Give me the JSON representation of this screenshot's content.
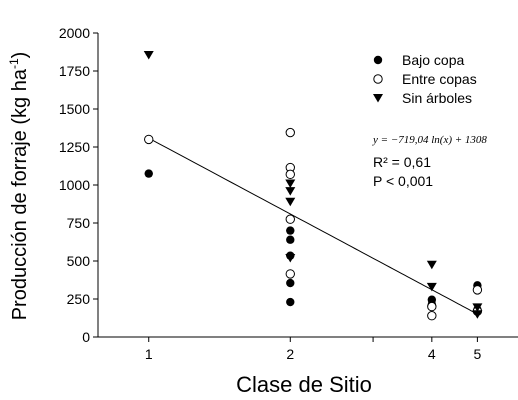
{
  "chart_data": {
    "type": "scatter",
    "xlabel": "Clase de Sitio",
    "ylabel": "Producción de forraje (kg ha",
    "ylabel_sup": "-1",
    "ylabel_close": ")",
    "x_scale": "log",
    "xlim": [
      0.78,
      6.1
    ],
    "ylim": [
      0,
      2000
    ],
    "x_ticks": [
      1,
      2,
      4,
      5
    ],
    "x_minor_ticks": [
      3
    ],
    "y_ticks": [
      0,
      250,
      500,
      750,
      1000,
      1250,
      1500,
      1750,
      2000
    ],
    "grid": false,
    "legend_position": "top-right",
    "series": [
      {
        "name": "Bajo copa",
        "marker": "filled-circle",
        "color": "#000000",
        "points": [
          [
            1,
            1075
          ],
          [
            2,
            700
          ],
          [
            2,
            640
          ],
          [
            2,
            535
          ],
          [
            2,
            355
          ],
          [
            2,
            230
          ],
          [
            4,
            245
          ],
          [
            4,
            215
          ],
          [
            5,
            340
          ],
          [
            5,
            180
          ]
        ]
      },
      {
        "name": "Entre copas",
        "marker": "open-circle",
        "color": "#000000",
        "points": [
          [
            1,
            1300
          ],
          [
            2,
            1345
          ],
          [
            2,
            1115
          ],
          [
            2,
            1070
          ],
          [
            2,
            775
          ],
          [
            2,
            415
          ],
          [
            4,
            200
          ],
          [
            4,
            140
          ],
          [
            5,
            310
          ],
          [
            5,
            170
          ]
        ]
      },
      {
        "name": "Sin árboles",
        "marker": "filled-triangle-down",
        "color": "#000000",
        "points": [
          [
            1,
            1855
          ],
          [
            2,
            1010
          ],
          [
            2,
            960
          ],
          [
            2,
            890
          ],
          [
            2,
            520
          ],
          [
            4,
            475
          ],
          [
            4,
            330
          ],
          [
            5,
            195
          ],
          [
            5,
            150
          ]
        ]
      }
    ],
    "fit": {
      "label": "y = −719,04 ln(x) + 1308",
      "a": -719.04,
      "b": 1308,
      "x_range": [
        1,
        5
      ]
    },
    "annotations": {
      "equation": "y = −719,04 ln(x) + 1308",
      "r2": "R² = 0,61",
      "p": "P < 0,001"
    }
  }
}
